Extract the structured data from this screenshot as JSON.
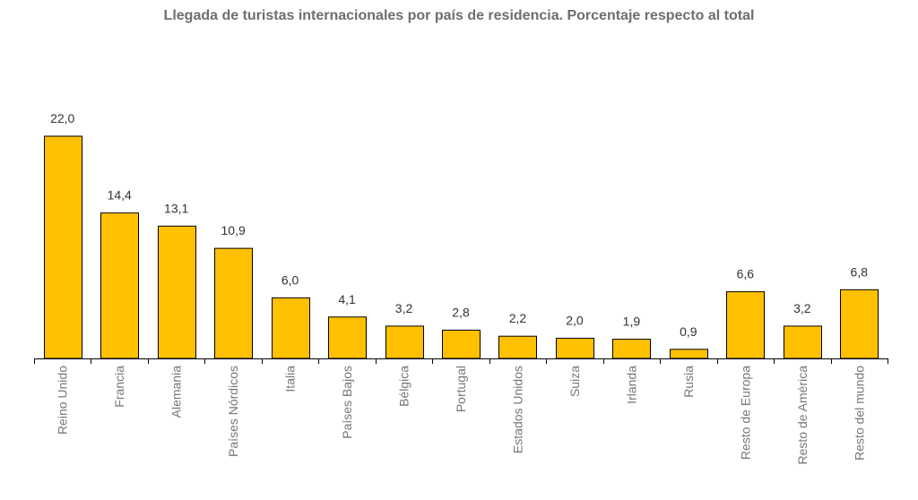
{
  "chart_data": {
    "type": "bar",
    "title": "Llegada de turistas internacionales por país de residencia. Porcentaje respecto al total",
    "xlabel": "",
    "ylabel": "",
    "ylim": [
      0,
      22
    ],
    "grid": false,
    "legend": "none",
    "categories": [
      "Reino Unido",
      "Francia",
      "Alemania",
      "Países Nórdicos",
      "Italia",
      "Países Bajos",
      "Bélgica",
      "Portugal",
      "Estados Unidos",
      "Suiza",
      "Irlanda",
      "Rusia",
      "Resto de Europa",
      "Resto de América",
      "Resto del mundo"
    ],
    "values": [
      22.0,
      14.4,
      13.1,
      10.9,
      6.0,
      4.1,
      3.2,
      2.8,
      2.2,
      2.0,
      1.9,
      0.9,
      6.6,
      3.2,
      6.8
    ],
    "value_labels": [
      "22,0",
      "14,4",
      "13,1",
      "10,9",
      "6,0",
      "4,1",
      "3,2",
      "2,8",
      "2,2",
      "2,0",
      "1,9",
      "0,9",
      "6,6",
      "3,2",
      "6,8"
    ],
    "colors": {
      "bar_fill": "#FFC000",
      "bar_stroke": "#000000"
    }
  }
}
